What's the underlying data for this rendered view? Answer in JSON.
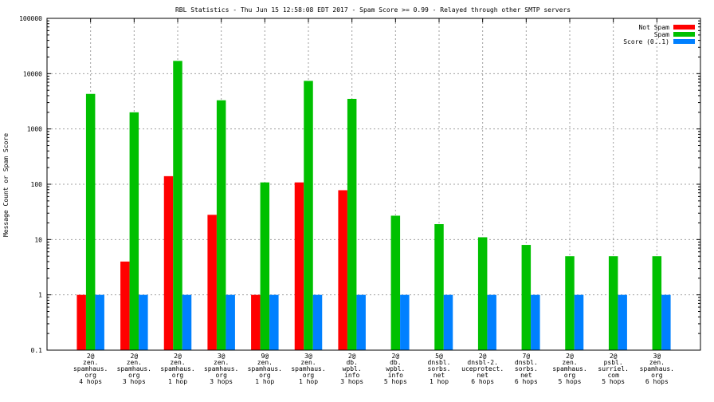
{
  "chart_data": {
    "type": "bar",
    "title": "RBL Statistics - Thu Jun 15 12:58:08 EDT 2017 - Spam Score >= 0.99 - Relayed through other SMTP servers",
    "xlabel": "",
    "ylabel": "Message Count or Spam Score",
    "yscale": "log",
    "ylim": [
      0.1,
      100000
    ],
    "yticks": [
      {
        "value": 100000,
        "label": "100000"
      },
      {
        "value": 10000,
        "label": "10000"
      },
      {
        "value": 1000,
        "label": "1000"
      },
      {
        "value": 100,
        "label": "100"
      },
      {
        "value": 10,
        "label": "10"
      },
      {
        "value": 1,
        "label": "1"
      },
      {
        "value": 0.1,
        "label": "0.1"
      }
    ],
    "grid": true,
    "legend_position": "top-right",
    "categories": [
      {
        "lines": [
          "2@",
          "zen.",
          "spamhaus.",
          "org",
          "4 hops"
        ]
      },
      {
        "lines": [
          "2@",
          "zen.",
          "spamhaus.",
          "org",
          "3 hops"
        ]
      },
      {
        "lines": [
          "2@",
          "zen.",
          "spamhaus.",
          "org",
          "1 hop"
        ]
      },
      {
        "lines": [
          "3@",
          "zen.",
          "spamhaus.",
          "org",
          "3 hops"
        ]
      },
      {
        "lines": [
          "9@",
          "zen.",
          "spamhaus.",
          "org",
          "1 hop"
        ]
      },
      {
        "lines": [
          "3@",
          "zen.",
          "spamhaus.",
          "org",
          "1 hop"
        ]
      },
      {
        "lines": [
          "2@",
          "db.",
          "wpbl.",
          "info",
          "3 hops"
        ]
      },
      {
        "lines": [
          "2@",
          "db.",
          "wpbl.",
          "info",
          "5 hops"
        ]
      },
      {
        "lines": [
          "5@",
          "dnsbl.",
          "sorbs.",
          "net",
          "1 hop"
        ]
      },
      {
        "lines": [
          "2@",
          "dnsbl-2.",
          "uceprotect.",
          "net",
          "6 hops"
        ]
      },
      {
        "lines": [
          "7@",
          "dnsbl.",
          "sorbs.",
          "net",
          "6 hops"
        ]
      },
      {
        "lines": [
          "2@",
          "zen.",
          "spamhaus.",
          "org",
          "5 hops"
        ]
      },
      {
        "lines": [
          "2@",
          "psbl.",
          "surriel.",
          "com",
          "5 hops"
        ]
      },
      {
        "lines": [
          "3@",
          "zen.",
          "spamhaus.",
          "org",
          "6 hops"
        ]
      }
    ],
    "series": [
      {
        "name": "Not Spam",
        "color": "#ff0000",
        "values": [
          1,
          4,
          140,
          28,
          1,
          108,
          78,
          null,
          null,
          null,
          null,
          null,
          null,
          null
        ]
      },
      {
        "name": "Spam",
        "color": "#00c000",
        "values": [
          4300,
          2000,
          17000,
          3300,
          108,
          7400,
          3500,
          27,
          19,
          11,
          8,
          5,
          5,
          5
        ]
      },
      {
        "name": "Score (0..1)",
        "color": "#0080ff",
        "values": [
          1,
          1,
          1,
          1,
          1,
          1,
          1,
          1,
          1,
          1,
          1,
          1,
          1,
          1
        ]
      }
    ]
  }
}
